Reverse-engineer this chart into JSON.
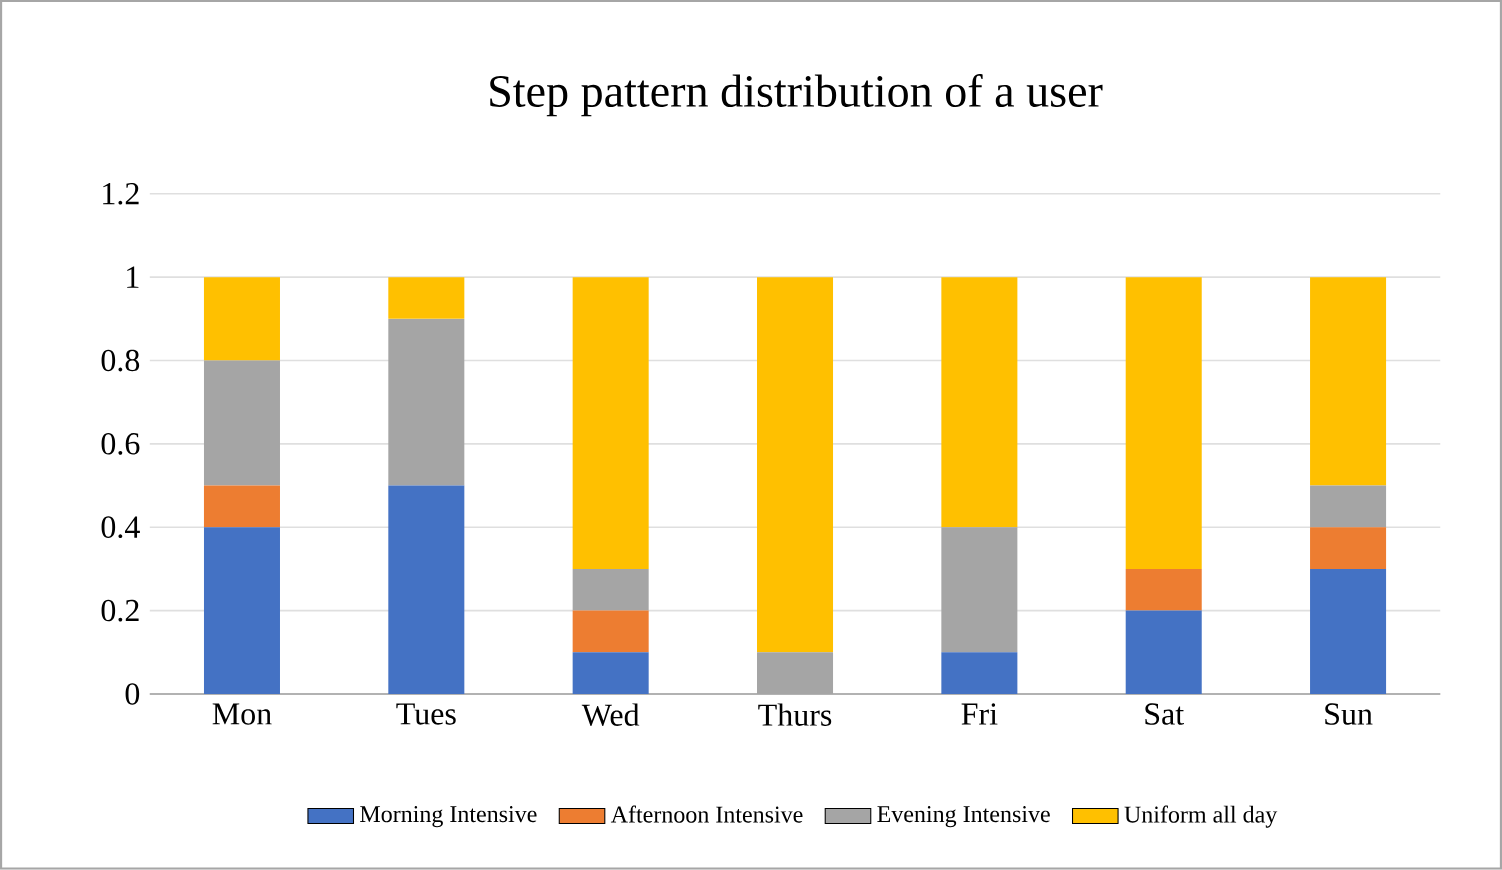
{
  "chart_data": {
    "type": "bar",
    "stacked": true,
    "title": "Step pattern distribution of a user",
    "categories": [
      "Mon",
      "Tues",
      "Wed",
      "Thurs",
      "Fri",
      "Sat",
      "Sun"
    ],
    "series": [
      {
        "name": "Morning Intensive",
        "color": "#4472c4",
        "values": [
          0.4,
          0.5,
          0.1,
          0,
          0.1,
          0.2,
          0.3
        ]
      },
      {
        "name": "Afternoon Intensive",
        "color": "#ed7d31",
        "values": [
          0.1,
          0,
          0.1,
          0,
          0,
          0.1,
          0.1
        ]
      },
      {
        "name": "Evening Intensive",
        "color": "#a5a5a5",
        "values": [
          0.3,
          0.4,
          0.1,
          0.1,
          0.3,
          0,
          0.1
        ]
      },
      {
        "name": "Uniform all day",
        "color": "#ffc000",
        "values": [
          0.2,
          0.1,
          0.7,
          0.9,
          0.6,
          0.7,
          0.5
        ]
      }
    ],
    "ylim": [
      0,
      1.2
    ],
    "yticks": [
      0,
      0.2,
      0.4,
      0.6,
      0.8,
      1,
      1.2
    ],
    "grid": "y",
    "legend": "bottom"
  }
}
